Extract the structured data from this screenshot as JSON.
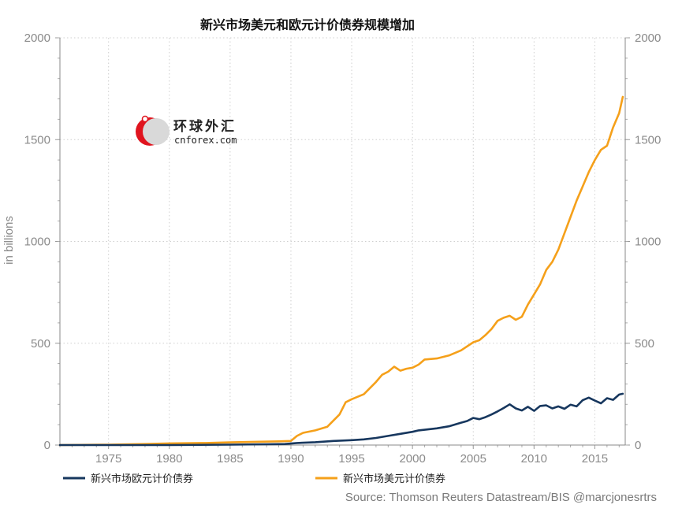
{
  "chart_data": {
    "type": "line",
    "title": "新兴市场美元和欧元计价债券规模增加",
    "xlabel": "",
    "ylabel": "in billions",
    "xlim": [
      1971,
      2017.5
    ],
    "ylim": [
      0,
      2000
    ],
    "x_ticks": [
      "1975",
      "1980",
      "1985",
      "1990",
      "1995",
      "2000",
      "2005",
      "2010",
      "2015"
    ],
    "y_ticks": [
      "0",
      "500",
      "1000",
      "1500",
      "2000"
    ],
    "grid": true,
    "legend_position": "bottom",
    "series": [
      {
        "name": "新兴市场欧元计价债券",
        "color": "#17375e",
        "x": [
          1971,
          1980,
          1985,
          1988,
          1989.5,
          1990.5,
          1992,
          1993.5,
          1995,
          1996,
          1997,
          1998,
          1999,
          2000,
          2000.5,
          2001,
          2002,
          2003,
          2004,
          2004.5,
          2005,
          2005.5,
          2006,
          2006.5,
          2007,
          2007.5,
          2008,
          2008.5,
          2009,
          2009.5,
          2010,
          2010.5,
          2011,
          2011.5,
          2012,
          2012.5,
          2013,
          2013.5,
          2014,
          2014.5,
          2015,
          2015.5,
          2016,
          2016.5,
          2017,
          2017.3
        ],
        "values": [
          0,
          0,
          2,
          4,
          5,
          10,
          14,
          20,
          24,
          28,
          35,
          45,
          55,
          65,
          72,
          75,
          82,
          92,
          110,
          118,
          133,
          127,
          137,
          150,
          165,
          182,
          200,
          180,
          170,
          188,
          168,
          192,
          195,
          180,
          190,
          178,
          198,
          190,
          220,
          233,
          218,
          205,
          230,
          222,
          248,
          252
        ]
      },
      {
        "name": "新兴市场美元计价债券",
        "color": "#f5a01a",
        "x": [
          1971,
          1975,
          1978,
          1980,
          1983,
          1985,
          1987,
          1989,
          1990,
          1990.5,
          1991,
          1992,
          1993,
          1994,
          1994.5,
          1995,
          1996,
          1997,
          1997.5,
          1998,
          1998.5,
          1999,
          1999.5,
          2000,
          2000.5,
          2001,
          2002,
          2003,
          2004,
          2005,
          2005.5,
          2006,
          2006.5,
          2007,
          2007.5,
          2008,
          2008.5,
          2009,
          2009.5,
          2010,
          2010.5,
          2011,
          2011.5,
          2012,
          2012.5,
          2013,
          2013.5,
          2014,
          2014.5,
          2015,
          2015.5,
          2016,
          2016.5,
          2017,
          2017.3
        ],
        "values": [
          0,
          2,
          5,
          8,
          10,
          13,
          16,
          18,
          20,
          45,
          60,
          72,
          90,
          150,
          210,
          225,
          250,
          310,
          345,
          360,
          385,
          365,
          375,
          380,
          395,
          420,
          425,
          440,
          465,
          505,
          515,
          540,
          570,
          610,
          625,
          635,
          615,
          630,
          690,
          740,
          790,
          860,
          900,
          960,
          1040,
          1120,
          1200,
          1270,
          1340,
          1400,
          1450,
          1470,
          1560,
          1630,
          1710
        ]
      }
    ],
    "annotations": [
      "Source: Thomson Reuters Datastream/BIS @marcjonesrtrs"
    ]
  },
  "logo": {
    "name": "环球外汇",
    "domain": "cnforex.com",
    "icon": "cnforex-logo-icon"
  }
}
